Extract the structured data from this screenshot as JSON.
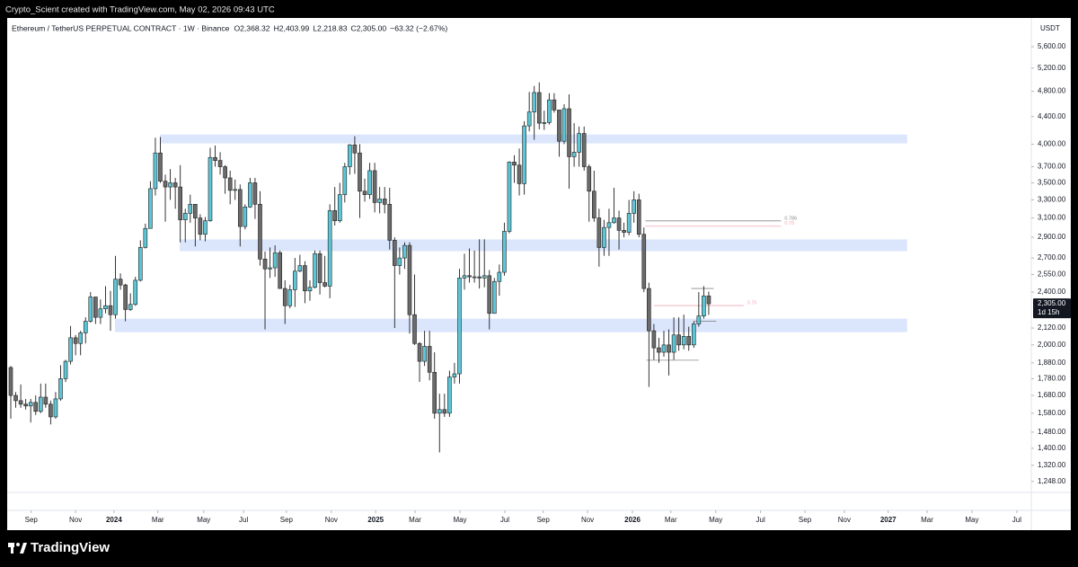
{
  "chart_data": {
    "type": "candlestick",
    "credit": "Crypto_Scient created with TradingView.com, May 02, 2026 09:43 UTC",
    "title": "Ethereum / TetherUS PERPETUAL CONTRACT · 1W · Binance",
    "ohlc_legend": [
      "O2,368.32",
      "H2,403.99",
      "L2,218.83",
      "C2,305.00"
    ],
    "change": "−63.32 (−2.67%)",
    "unit": "USDT",
    "last_price_label": "2,305.00",
    "countdown": "1d 15h",
    "brand": "TradingView",
    "up_color": "#5cc6d6",
    "down_color": "#6b6b6b",
    "outline_color": "#1e1e1e",
    "log_scale": true,
    "ylim": [
      1202,
      6183
    ],
    "yticks": [
      {
        "value": 5600,
        "label": "5,600.00"
      },
      {
        "value": 5200,
        "label": "5,200.00"
      },
      {
        "value": 4800,
        "label": "4,800.00"
      },
      {
        "value": 4400,
        "label": "4,400.00"
      },
      {
        "value": 4000,
        "label": "4,000.00"
      },
      {
        "value": 3700,
        "label": "3,700.00"
      },
      {
        "value": 3500,
        "label": "3,500.00"
      },
      {
        "value": 3300,
        "label": "3,300.00"
      },
      {
        "value": 3100,
        "label": "3,100.00"
      },
      {
        "value": 2900,
        "label": "2,900.00"
      },
      {
        "value": 2700,
        "label": "2,700.00"
      },
      {
        "value": 2550,
        "label": "2,550.00"
      },
      {
        "value": 2400,
        "label": "2,400.00"
      },
      {
        "value": 2120,
        "label": "2,120.00"
      },
      {
        "value": 2000,
        "label": "2,000.00"
      },
      {
        "value": 1880,
        "label": "1,880.00"
      },
      {
        "value": 1780,
        "label": "1,780.00"
      },
      {
        "value": 1680,
        "label": "1,680.00"
      },
      {
        "value": 1580,
        "label": "1,580.00"
      },
      {
        "value": 1480,
        "label": "1,480.00"
      },
      {
        "value": 1400,
        "label": "1,400.00"
      },
      {
        "value": 1320,
        "label": "1,320.00"
      },
      {
        "value": 1248,
        "label": "1,248.00"
      }
    ],
    "xlim": [
      -0.72,
      204.7
    ],
    "xticks": [
      {
        "value": 4.1,
        "label": "Sep"
      },
      {
        "value": 13.0,
        "label": "Nov"
      },
      {
        "value": 20.7,
        "label": "2024"
      },
      {
        "value": 29.5,
        "label": "Mar"
      },
      {
        "value": 38.7,
        "label": "May"
      },
      {
        "value": 46.7,
        "label": "Jul"
      },
      {
        "value": 55.3,
        "label": "Sep"
      },
      {
        "value": 64.3,
        "label": "Nov"
      },
      {
        "value": 73.2,
        "label": "2025"
      },
      {
        "value": 81.1,
        "label": "Mar"
      },
      {
        "value": 90.1,
        "label": "May"
      },
      {
        "value": 99.1,
        "label": "Jul"
      },
      {
        "value": 106.8,
        "label": "Sep"
      },
      {
        "value": 115.7,
        "label": "Nov"
      },
      {
        "value": 124.7,
        "label": "2026"
      },
      {
        "value": 132.4,
        "label": "Mar"
      },
      {
        "value": 141.4,
        "label": "May"
      },
      {
        "value": 150.4,
        "label": "Jul"
      },
      {
        "value": 159.3,
        "label": "Sep"
      },
      {
        "value": 167.2,
        "label": "Nov"
      },
      {
        "value": 176.0,
        "label": "2027"
      },
      {
        "value": 183.8,
        "label": "Mar"
      },
      {
        "value": 192.8,
        "label": "May"
      },
      {
        "value": 201.8,
        "label": "Jul"
      }
    ],
    "zones": [
      {
        "x": [
          29.9,
          179.8
        ],
        "y": [
          4010,
          4136
        ],
        "color": "#dbe6fd"
      },
      {
        "x": [
          33.9,
          179.8
        ],
        "y": [
          2765,
          2879
        ],
        "color": "#dbe6fd"
      },
      {
        "x": [
          20.9,
          179.8
        ],
        "y": [
          2090,
          2190
        ],
        "color": "#dbe6fd"
      }
    ],
    "levels": [
      {
        "label": "0.786",
        "value": 3069,
        "x": [
          127.3,
          154.5
        ],
        "color": "#8a8a8a"
      },
      {
        "label": "0.75",
        "value": 3013,
        "x": [
          127.3,
          154.5
        ],
        "color": "#f2a9b5"
      },
      {
        "label": "0.75",
        "value": 2291,
        "x": [
          129.0,
          147.0
        ],
        "color": "#f2a9b5"
      },
      {
        "value": 1897,
        "x": [
          127.5,
          138.0
        ],
        "color": "#8a8a8a"
      },
      {
        "value": 2430,
        "x": [
          136.5,
          141.0
        ],
        "color": "#8a8a8a"
      },
      {
        "value": 2170,
        "x": [
          137.0,
          141.5
        ],
        "color": "#8a8a8a"
      }
    ],
    "open": [
      1850,
      1680,
      1650,
      1630,
      1620,
      1640,
      1590,
      1670,
      1630,
      1560,
      1660,
      1780,
      1890,
      2050,
      2010,
      2085,
      2170,
      2360,
      2200,
      2265,
      2290,
      2220,
      2510,
      2460,
      2260,
      2300,
      2500,
      2800,
      2990,
      3430,
      3880,
      3520,
      3450,
      3500,
      3450,
      3080,
      3150,
      3250,
      3100,
      2930,
      3070,
      3820,
      3780,
      3700,
      3560,
      3410,
      3420,
      3010,
      3220,
      3500,
      3250,
      2690,
      2600,
      2610,
      2750,
      2430,
      2290,
      2420,
      2580,
      2630,
      2410,
      2440,
      2740,
      2480,
      2450,
      3180,
      3070,
      3360,
      3700,
      3990,
      3880,
      3400,
      3360,
      3650,
      3270,
      3310,
      3250,
      2870,
      2630,
      2700,
      2820,
      2220,
      2010,
      1890,
      1990,
      1820,
      1580,
      1600,
      1580,
      1790,
      1810,
      2520,
      2540,
      2530,
      2530,
      2520,
      2540,
      2230,
      2490,
      2570,
      2960,
      3760,
      3720,
      3490,
      4260,
      4470,
      4780,
      4300,
      4310,
      4660,
      4500,
      4040,
      4520,
      3830,
      3890,
      4150,
      3700,
      3400,
      3100,
      2800,
      3000,
      3050,
      3100,
      2970,
      2950,
      3150,
      3300,
      2930,
      2430,
      2100,
      1980,
      1950,
      2000,
      1950,
      2070,
      2000,
      2060,
      2000,
      2150,
      2210,
      2368.32
    ],
    "high": [
      1860,
      1700,
      1745,
      1660,
      1660,
      1680,
      1750,
      1750,
      1650,
      1700,
      1865,
      1900,
      2135,
      2070,
      2100,
      2200,
      2400,
      2360,
      2340,
      2450,
      2410,
      2720,
      2560,
      2470,
      2390,
      2530,
      2870,
      3040,
      3520,
      4090,
      4100,
      3600,
      3670,
      3560,
      3720,
      3200,
      3360,
      3250,
      3140,
      3110,
      3950,
      3980,
      3890,
      3720,
      3650,
      3540,
      3480,
      3250,
      3560,
      3560,
      3400,
      2760,
      2800,
      2820,
      2770,
      2500,
      2460,
      2700,
      2730,
      2670,
      2500,
      2770,
      2770,
      2720,
      3250,
      3450,
      3500,
      3750,
      4000,
      4110,
      4000,
      3550,
      3750,
      3750,
      3450,
      3450,
      3440,
      2900,
      2800,
      2850,
      2850,
      2550,
      2020,
      2100,
      2100,
      1950,
      1690,
      1690,
      1830,
      1880,
      2600,
      2740,
      2790,
      2770,
      2880,
      2880,
      2590,
      2520,
      2640,
      3050,
      3770,
      3850,
      3940,
      4330,
      4790,
      4890,
      4950,
      4490,
      4770,
      4770,
      4500,
      4590,
      4750,
      4300,
      4250,
      4250,
      3730,
      3650,
      3200,
      3080,
      3200,
      3440,
      3180,
      3050,
      3300,
      3400,
      3370,
      3000,
      2480,
      2150,
      2050,
      2100,
      2110,
      2200,
      2200,
      2220,
      2130,
      2170,
      2400,
      2450,
      2403.99
    ],
    "low": [
      1550,
      1610,
      1610,
      1600,
      1530,
      1570,
      1580,
      1610,
      1520,
      1550,
      1650,
      1760,
      1870,
      1930,
      1930,
      2010,
      2160,
      2150,
      2150,
      2230,
      2100,
      2190,
      2420,
      2170,
      2250,
      2290,
      2490,
      2790,
      2990,
      3350,
      3500,
      3060,
      3300,
      3200,
      2850,
      2850,
      3050,
      2810,
      2870,
      2860,
      3060,
      3700,
      3600,
      3370,
      3250,
      3300,
      2810,
      2980,
      3210,
      3090,
      2630,
      2110,
      2520,
      2530,
      2430,
      2150,
      2270,
      2280,
      2570,
      2310,
      2330,
      2430,
      2380,
      2440,
      2350,
      3020,
      3050,
      3270,
      3600,
      3610,
      3100,
      3280,
      3310,
      3160,
      3150,
      3150,
      2780,
      2120,
      2550,
      2600,
      2080,
      2000,
      1760,
      1860,
      1770,
      1550,
      1380,
      1560,
      1560,
      1750,
      1750,
      2420,
      2480,
      2480,
      2430,
      2440,
      2110,
      2230,
      2370,
      2540,
      2940,
      3500,
      3350,
      3360,
      4180,
      4060,
      4210,
      4200,
      4280,
      4460,
      3830,
      4000,
      3430,
      3700,
      3700,
      3650,
      3060,
      3060,
      2620,
      2720,
      2720,
      3040,
      2780,
      2900,
      2920,
      3050,
      2900,
      2400,
      1730,
      1900,
      1880,
      1920,
      1800,
      1900,
      1960,
      1970,
      1960,
      1980,
      2130,
      2190,
      2218.83
    ],
    "close": [
      1680,
      1650,
      1630,
      1620,
      1640,
      1590,
      1670,
      1630,
      1560,
      1660,
      1780,
      1890,
      2050,
      2010,
      2085,
      2170,
      2360,
      2200,
      2265,
      2290,
      2220,
      2510,
      2460,
      2260,
      2300,
      2500,
      2800,
      2990,
      3430,
      3880,
      3520,
      3450,
      3500,
      3450,
      3080,
      3150,
      3250,
      3100,
      2930,
      3070,
      3820,
      3780,
      3700,
      3560,
      3410,
      3420,
      3010,
      3220,
      3500,
      3250,
      2690,
      2600,
      2610,
      2750,
      2430,
      2290,
      2420,
      2580,
      2630,
      2410,
      2440,
      2740,
      2480,
      2450,
      3180,
      3070,
      3360,
      3700,
      3990,
      3880,
      3400,
      3360,
      3650,
      3270,
      3310,
      3250,
      2870,
      2630,
      2700,
      2820,
      2220,
      2010,
      1890,
      1990,
      1820,
      1580,
      1600,
      1580,
      1790,
      1810,
      2520,
      2540,
      2530,
      2530,
      2520,
      2540,
      2230,
      2490,
      2570,
      2960,
      3760,
      3720,
      3490,
      4260,
      4470,
      4780,
      4300,
      4310,
      4660,
      4500,
      4040,
      4520,
      3830,
      3890,
      4150,
      3700,
      3400,
      3100,
      2800,
      3000,
      3050,
      3100,
      2970,
      2950,
      3150,
      3300,
      2930,
      2430,
      2100,
      1980,
      1950,
      2000,
      1950,
      2070,
      2000,
      2060,
      2000,
      2150,
      2210,
      2368.32,
      2305
    ]
  }
}
